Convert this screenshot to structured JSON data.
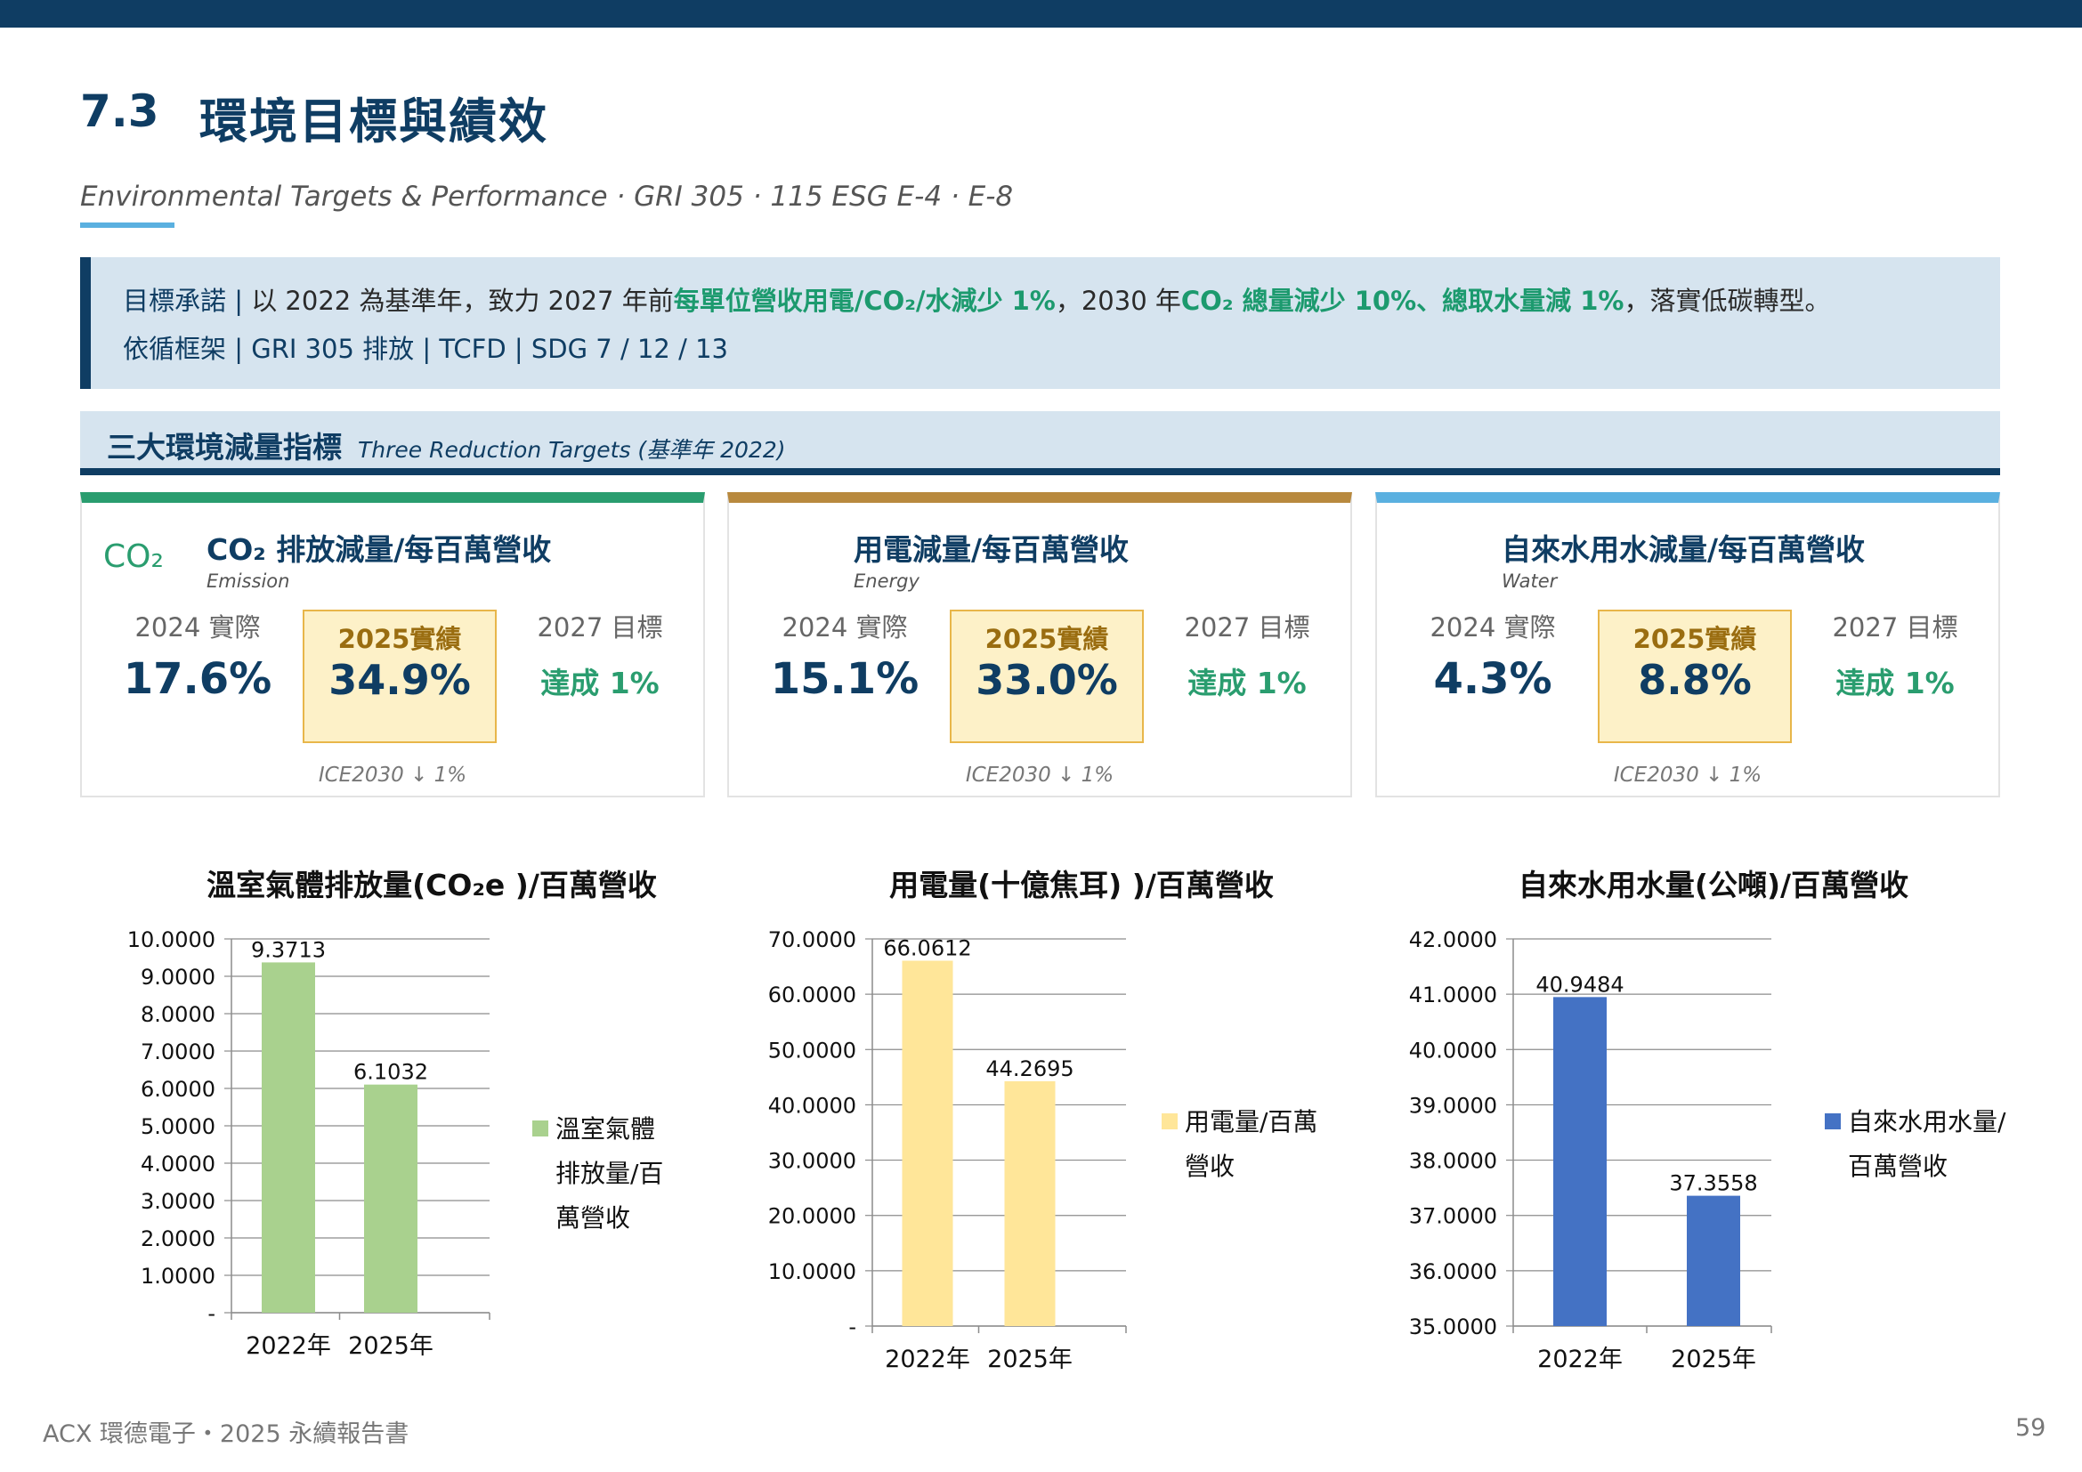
{
  "section": {
    "number": "7.3",
    "title": "環境目標與績效"
  },
  "subtitle": "Environmental Targets & Performance · GRI 305 · 115 ESG E-4 · E-8",
  "banner": {
    "line1": {
      "label": "目標承諾 |",
      "text_a": " 以 2022 為基準年，致力 2027 年前",
      "hl_a": "每單位營收用電/CO₂/水減少 1%",
      "text_b": "，2030 年",
      "hl_b": "CO₂ 總量減少 10%、總取水量減 1%",
      "text_c": "，落實低碳轉型。"
    },
    "line2": {
      "label": "依循框架 |",
      "frameworks": " GRI  305 排放   |   TCFD   |   SDG 7 / 12 / 13"
    }
  },
  "reduction_header": {
    "zh": "三大環境減量指標",
    "en": "Three Reduction Targets (基準年 2022)"
  },
  "cards": [
    {
      "title": "CO₂ 排放減量/每百萬營收",
      "en": "Emission",
      "icon": "CO₂",
      "icon_name": "co2-icon",
      "accent": "#2a9d6f",
      "label_2024": "2024 實際",
      "val_2024": "17.6%",
      "label_2025": "2025實績",
      "val_2025": "34.9%",
      "label_2027": "2027 目標",
      "val_2027": "達成 1%",
      "footnote": "ICE2030 ↓ 1%"
    },
    {
      "title": "用電減量/每百萬營收",
      "en": "Energy",
      "icon": "",
      "accent": "#b8893e",
      "label_2024": "2024 實際",
      "val_2024": "15.1%",
      "label_2025": "2025實績",
      "val_2025": "33.0%",
      "label_2027": "2027 目標",
      "val_2027": "達成 1%",
      "footnote": "ICE2030 ↓ 1%"
    },
    {
      "title": "自來水用水減量/每百萬營收",
      "en": "Water",
      "icon": "",
      "accent": "#5ab0e0",
      "label_2024": "2024 實際",
      "val_2024": "4.3%",
      "label_2025": "2025實績",
      "val_2025": "8.8%",
      "label_2027": "2027 目標",
      "val_2027": "達成 1%",
      "footnote": "ICE2030 ↓ 1%"
    }
  ],
  "chart_data": [
    {
      "type": "bar",
      "title": "溫室氣體排放量(CO₂e )/百萬營收",
      "categories": [
        "2022年",
        "2025年"
      ],
      "series": [
        {
          "name": "溫室氣體排放量/百萬營收",
          "values": [
            9.3713,
            6.1032
          ],
          "labels": [
            "9.3713",
            "6.1032"
          ],
          "color": "#a9d18e"
        }
      ],
      "ylim": [
        0,
        10
      ],
      "yticks": [
        0,
        1,
        2,
        3,
        4,
        5,
        6,
        7,
        8,
        9,
        10
      ],
      "ytick_labels": [
        "-",
        "1.0000",
        "2.0000",
        "3.0000",
        "4.0000",
        "5.0000",
        "6.0000",
        "7.0000",
        "8.0000",
        "9.0000",
        "10.0000"
      ],
      "legend": "right",
      "legend_lines": [
        "溫室氣體",
        "排放量/百",
        "萬營收"
      ],
      "grid": true
    },
    {
      "type": "bar",
      "title": "用電量(十億焦耳) )/百萬營收",
      "categories": [
        "2022年",
        "2025年"
      ],
      "series": [
        {
          "name": "用電量/百萬營收",
          "values": [
            66.0612,
            44.2695
          ],
          "labels": [
            "66.0612",
            "44.2695"
          ],
          "color": "#ffe699"
        }
      ],
      "ylim": [
        0,
        70
      ],
      "yticks": [
        0,
        10,
        20,
        30,
        40,
        50,
        60,
        70
      ],
      "ytick_labels": [
        "-",
        "10.0000",
        "20.0000",
        "30.0000",
        "40.0000",
        "50.0000",
        "60.0000",
        "70.0000"
      ],
      "legend": "right",
      "legend_lines": [
        "用電量/百萬",
        "營收"
      ],
      "grid": true
    },
    {
      "type": "bar",
      "title": "自來水用水量(公噸)/百萬營收",
      "categories": [
        "2022年",
        "2025年"
      ],
      "series": [
        {
          "name": "自來水用水量/百萬營收",
          "values": [
            40.9484,
            37.3558
          ],
          "labels": [
            "40.9484",
            "37.3558"
          ],
          "color": "#4472c4"
        }
      ],
      "ylim": [
        35,
        42
      ],
      "yticks": [
        35,
        36,
        37,
        38,
        39,
        40,
        41,
        42
      ],
      "ytick_labels": [
        "35.0000",
        "36.0000",
        "37.0000",
        "38.0000",
        "39.0000",
        "40.0000",
        "41.0000",
        "42.0000"
      ],
      "legend": "right",
      "legend_lines": [
        "自來水用水量/",
        "百萬營收"
      ],
      "grid": true
    }
  ],
  "footer": {
    "left": "ACX 環德電子・2025 永續報告書",
    "page": "59"
  }
}
